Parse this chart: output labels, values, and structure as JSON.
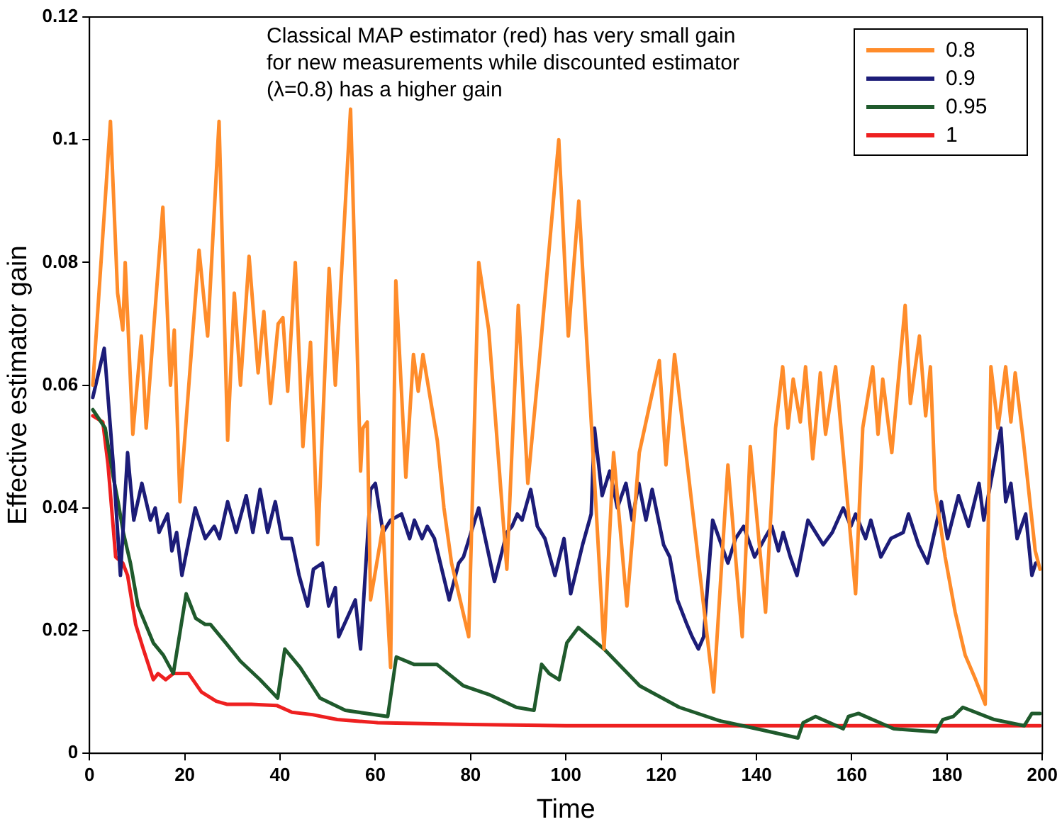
{
  "chart_data": {
    "type": "line",
    "xlabel": "Time",
    "ylabel": "Effective estimator gain",
    "annotations": [
      "Classical MAP estimator (red) has very small gain for new measurements while discounted estimator (λ=0.8) has a higher gain"
    ],
    "xlim": [
      0,
      200
    ],
    "xticks": [
      0,
      20,
      40,
      60,
      80,
      100,
      120,
      140,
      160,
      180,
      200
    ],
    "ylim": [
      0,
      0.12
    ],
    "yticks": [
      0,
      0.02,
      0.04,
      0.06,
      0.08,
      0.1,
      0.12
    ],
    "grid": false,
    "legend": "top right",
    "marker": "none",
    "line_style": "solid",
    "series": [
      {
        "name": "0.8",
        "color": "#ff8c2a",
        "x": [
          0.7,
          4.4,
          5.9,
          7,
          7.5,
          9.1,
          10.9,
          11.9,
          15.4,
          17,
          17.8,
          19,
          23,
          24.8,
          27.2,
          29,
          30.4,
          31.7,
          33.5,
          35.4,
          36.6,
          38,
          39.6,
          40.6,
          41.6,
          43.2,
          44.8,
          46.4,
          47.9,
          50.3,
          51.6,
          54.8,
          56.9,
          57.4,
          58.3,
          59,
          61.6,
          63.2,
          64.3,
          66.4,
          68,
          69,
          70,
          73,
          74.4,
          76,
          79.6,
          81.7,
          83.8,
          87.6,
          90,
          92,
          94.3,
          98.5,
          100.5,
          102.7,
          108,
          110,
          112.8,
          115.4,
          119.6,
          121,
          122.8,
          131,
          134,
          137,
          138.7,
          141.9,
          144,
          145.5,
          146.6,
          147.7,
          149.2,
          150.3,
          151.8,
          153.4,
          154.5,
          156.6,
          160.8,
          162.3,
          164.4,
          165.5,
          166.5,
          168.4,
          171.2,
          172.3,
          174.2,
          175.5,
          176.5,
          177.5,
          179.6,
          181.7,
          183.8,
          186,
          188,
          189.2,
          190.7,
          192.3,
          193.4,
          194.3,
          196,
          198.5,
          199.5
        ],
        "values": [
          0.06,
          0.103,
          0.075,
          0.069,
          0.08,
          0.052,
          0.068,
          0.053,
          0.089,
          0.06,
          0.069,
          0.041,
          0.082,
          0.068,
          0.103,
          0.051,
          0.075,
          0.06,
          0.081,
          0.062,
          0.072,
          0.057,
          0.07,
          0.071,
          0.059,
          0.08,
          0.05,
          0.067,
          0.034,
          0.079,
          0.06,
          0.105,
          0.046,
          0.053,
          0.054,
          0.025,
          0.037,
          0.014,
          0.077,
          0.045,
          0.065,
          0.059,
          0.065,
          0.051,
          0.04,
          0.031,
          0.019,
          0.08,
          0.069,
          0.03,
          0.073,
          0.044,
          0.063,
          0.1,
          0.068,
          0.09,
          0.017,
          0.049,
          0.024,
          0.049,
          0.064,
          0.047,
          0.065,
          0.01,
          0.047,
          0.019,
          0.05,
          0.023,
          0.053,
          0.063,
          0.053,
          0.061,
          0.054,
          0.063,
          0.048,
          0.062,
          0.052,
          0.063,
          0.026,
          0.053,
          0.063,
          0.052,
          0.061,
          0.049,
          0.073,
          0.057,
          0.068,
          0.055,
          0.063,
          0.043,
          0.032,
          0.023,
          0.016,
          0.012,
          0.008,
          0.063,
          0.053,
          0.063,
          0.054,
          0.062,
          0.051,
          0.033,
          0.03
        ]
      },
      {
        "name": "0.9",
        "color": "#1c1c78",
        "x": [
          0.7,
          3.1,
          5,
          6.5,
          8,
          9.3,
          11,
          12.8,
          13.8,
          14.6,
          16.4,
          17.3,
          18.3,
          19.4,
          22.2,
          24.3,
          26.2,
          27.3,
          29,
          30.8,
          32.9,
          34.3,
          35.8,
          37.4,
          39,
          40.4,
          42.4,
          44,
          45.8,
          47,
          48.9,
          50.2,
          51.6,
          52.3,
          55.8,
          56.9,
          59,
          60,
          61.6,
          63.2,
          65.5,
          67.2,
          68.2,
          69.8,
          70.9,
          72.4,
          75.5,
          77.5,
          78.5,
          81.7,
          85,
          87.6,
          88.7,
          89.8,
          90.8,
          92.6,
          94,
          95.6,
          97.7,
          99.6,
          101,
          103.5,
          105.3,
          106,
          107.6,
          109.2,
          110.8,
          112.6,
          113.9,
          115.3,
          116.8,
          118.1,
          119.7,
          120.5,
          121.8,
          123.4,
          125.4,
          126.5,
          127.8,
          128.9,
          130.8,
          134,
          135.6,
          137.3,
          139.6,
          141.7,
          143.2,
          144.6,
          145.6,
          147.1,
          148.5,
          150.8,
          154,
          155.9,
          158.2,
          159.8,
          160.8,
          162.9,
          164,
          166.1,
          168.2,
          170.8,
          171.9,
          174,
          175.9,
          178.8,
          180.1,
          182.4,
          184.5,
          186.7,
          187.7,
          191.3,
          192.3,
          193.4,
          194.7,
          196.5,
          197.8,
          198.6
        ],
        "values": [
          0.058,
          0.066,
          0.047,
          0.029,
          0.049,
          0.038,
          0.044,
          0.038,
          0.04,
          0.036,
          0.039,
          0.033,
          0.036,
          0.029,
          0.04,
          0.035,
          0.037,
          0.035,
          0.041,
          0.036,
          0.042,
          0.036,
          0.043,
          0.036,
          0.041,
          0.035,
          0.035,
          0.029,
          0.024,
          0.03,
          0.031,
          0.024,
          0.027,
          0.019,
          0.025,
          0.017,
          0.043,
          0.044,
          0.036,
          0.038,
          0.039,
          0.035,
          0.038,
          0.035,
          0.037,
          0.035,
          0.025,
          0.031,
          0.032,
          0.04,
          0.028,
          0.036,
          0.037,
          0.039,
          0.038,
          0.043,
          0.037,
          0.035,
          0.029,
          0.035,
          0.026,
          0.034,
          0.039,
          0.053,
          0.042,
          0.046,
          0.04,
          0.044,
          0.038,
          0.044,
          0.038,
          0.043,
          0.037,
          0.034,
          0.032,
          0.025,
          0.021,
          0.019,
          0.017,
          0.019,
          0.038,
          0.031,
          0.035,
          0.037,
          0.032,
          0.035,
          0.037,
          0.033,
          0.036,
          0.032,
          0.029,
          0.038,
          0.034,
          0.036,
          0.04,
          0.037,
          0.039,
          0.035,
          0.038,
          0.032,
          0.035,
          0.036,
          0.039,
          0.034,
          0.031,
          0.041,
          0.035,
          0.042,
          0.037,
          0.044,
          0.038,
          0.053,
          0.041,
          0.044,
          0.035,
          0.039,
          0.029,
          0.031
        ]
      },
      {
        "name": "0.95",
        "color": "#1f5a2c",
        "x": [
          0.7,
          3.3,
          5,
          6,
          7.1,
          8.6,
          10.2,
          11.8,
          13.4,
          15.5,
          17.6,
          20.3,
          22.3,
          24.3,
          25.4,
          28.6,
          31.7,
          35.8,
          39.5,
          41,
          44.2,
          48.4,
          53.7,
          62.6,
          64.4,
          68.1,
          72.9,
          78.5,
          83.8,
          89.6,
          93.3,
          94.9,
          96.5,
          98.6,
          100.2,
          102.6,
          108,
          115.5,
          123.8,
          132.3,
          140,
          148.7,
          149.8,
          152.4,
          158.2,
          159.3,
          161.4,
          168.8,
          177.7,
          179.1,
          181.3,
          183.3,
          189.9,
          196.2,
          197.8,
          199.5
        ],
        "values": [
          0.056,
          0.053,
          0.045,
          0.041,
          0.036,
          0.031,
          0.024,
          0.021,
          0.018,
          0.016,
          0.013,
          0.026,
          0.022,
          0.021,
          0.021,
          0.018,
          0.015,
          0.012,
          0.009,
          0.017,
          0.014,
          0.009,
          0.007,
          0.006,
          0.0157,
          0.0145,
          0.0145,
          0.011,
          0.0096,
          0.0075,
          0.007,
          0.0145,
          0.013,
          0.012,
          0.018,
          0.0205,
          0.017,
          0.011,
          0.0075,
          0.0053,
          0.004,
          0.0025,
          0.005,
          0.006,
          0.004,
          0.006,
          0.0065,
          0.004,
          0.0035,
          0.0055,
          0.006,
          0.0075,
          0.0055,
          0.0045,
          0.0065,
          0.0065
        ]
      },
      {
        "name": "1",
        "color": "#ee2020",
        "x": [
          0.7,
          2.8,
          3.9,
          5.5,
          7,
          8,
          9.7,
          11.3,
          13.4,
          14.4,
          16,
          17.6,
          20.8,
          23.5,
          26.6,
          28.8,
          34,
          39.3,
          42.5,
          46.8,
          52,
          60.5,
          80,
          100,
          150,
          199.5
        ],
        "values": [
          0.055,
          0.054,
          0.047,
          0.032,
          0.031,
          0.029,
          0.021,
          0.017,
          0.012,
          0.013,
          0.012,
          0.013,
          0.013,
          0.01,
          0.0085,
          0.008,
          0.008,
          0.0078,
          0.0067,
          0.0063,
          0.0055,
          0.005,
          0.0047,
          0.0045,
          0.0045,
          0.0045
        ]
      }
    ]
  }
}
